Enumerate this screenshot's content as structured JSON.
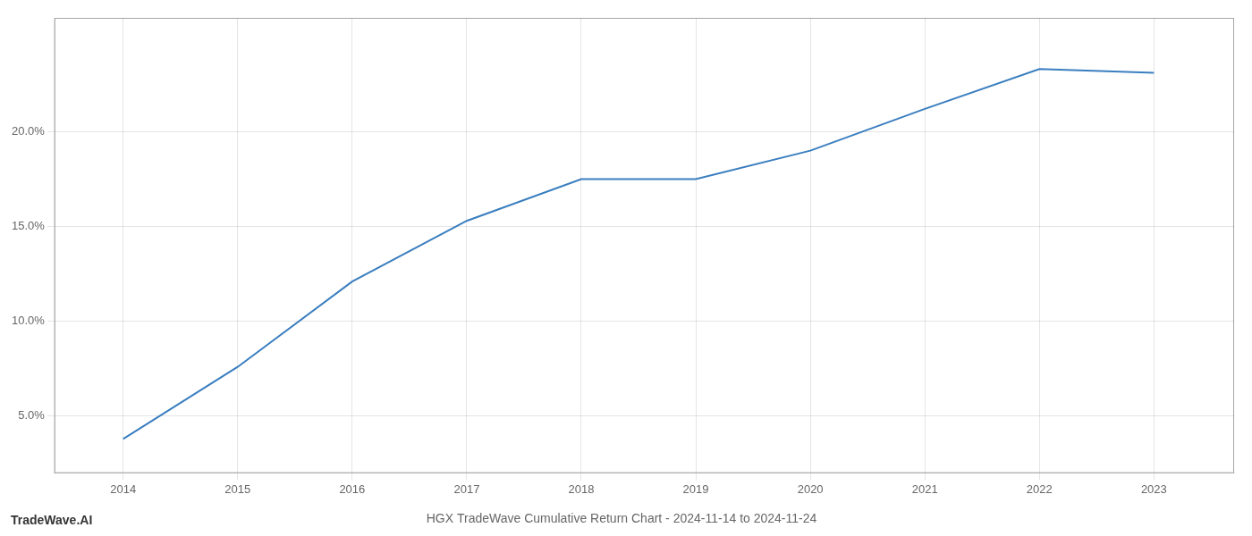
{
  "chart_data": {
    "type": "line",
    "title": "HGX TradeWave Cumulative Return Chart - 2024-11-14 to 2024-11-24",
    "annotations": [
      "TradeWave.AI"
    ],
    "x": [
      2014,
      2015,
      2016,
      2017,
      2018,
      2019,
      2020,
      2021,
      2022,
      2023
    ],
    "values": [
      3.8,
      7.6,
      12.1,
      15.3,
      17.5,
      17.5,
      19.0,
      21.2,
      23.3,
      23.1
    ],
    "color": "#3a7ebf",
    "xlim": [
      2013.4,
      2023.7
    ],
    "xticks": [
      2014,
      2015,
      2016,
      2017,
      2018,
      2019,
      2020,
      2021,
      2022,
      2023
    ],
    "ylim": [
      2.0,
      26.0
    ],
    "yticks": [
      {
        "value": 5.0,
        "label": "5.0%"
      },
      {
        "value": 10.0,
        "label": "10.0%"
      },
      {
        "value": 15.0,
        "label": "15.0%"
      },
      {
        "value": 20.0,
        "label": "20.0%"
      }
    ],
    "grid": true
  }
}
